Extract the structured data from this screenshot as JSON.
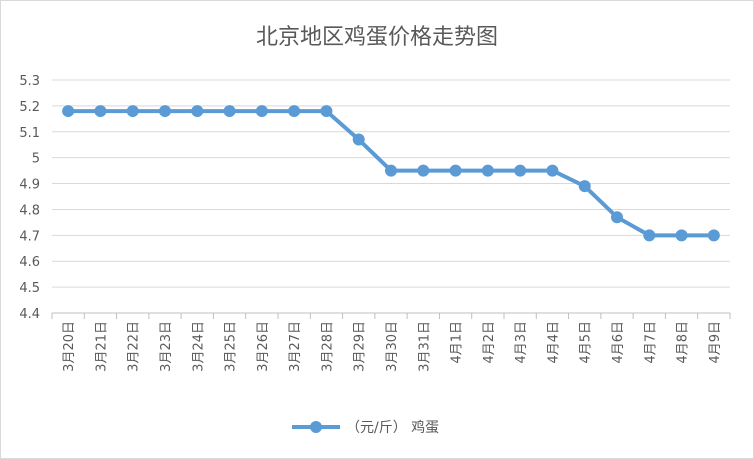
{
  "chart_data": {
    "type": "line",
    "title": "北京地区鸡蛋价格走势图",
    "categories": [
      "3月20日",
      "3月21日",
      "3月22日",
      "3月23日",
      "3月24日",
      "3月25日",
      "3月26日",
      "3月27日",
      "3月28日",
      "3月29日",
      "3月30日",
      "3月31日",
      "4月1日",
      "4月2日",
      "4月3日",
      "4月4日",
      "4月5日",
      "4月6日",
      "4月7日",
      "4月8日",
      "4月9日"
    ],
    "series": [
      {
        "name": "（元/斤） 鸡蛋",
        "color": "#5b9bd5",
        "values": [
          5.18,
          5.18,
          5.18,
          5.18,
          5.18,
          5.18,
          5.18,
          5.18,
          5.18,
          5.07,
          4.95,
          4.95,
          4.95,
          4.95,
          4.95,
          4.95,
          4.89,
          4.77,
          4.7,
          4.7,
          4.7
        ]
      }
    ],
    "ylim": [
      4.4,
      5.3
    ],
    "yticks": [
      "5.3",
      "5.2",
      "5.1",
      "5",
      "4.9",
      "4.8",
      "4.7",
      "4.6",
      "4.5",
      "4.4"
    ],
    "ytick_values": [
      5.3,
      5.2,
      5.1,
      5.0,
      4.9,
      4.8,
      4.7,
      4.6,
      4.5,
      4.4
    ],
    "grid": true,
    "legend_position": "bottom"
  }
}
